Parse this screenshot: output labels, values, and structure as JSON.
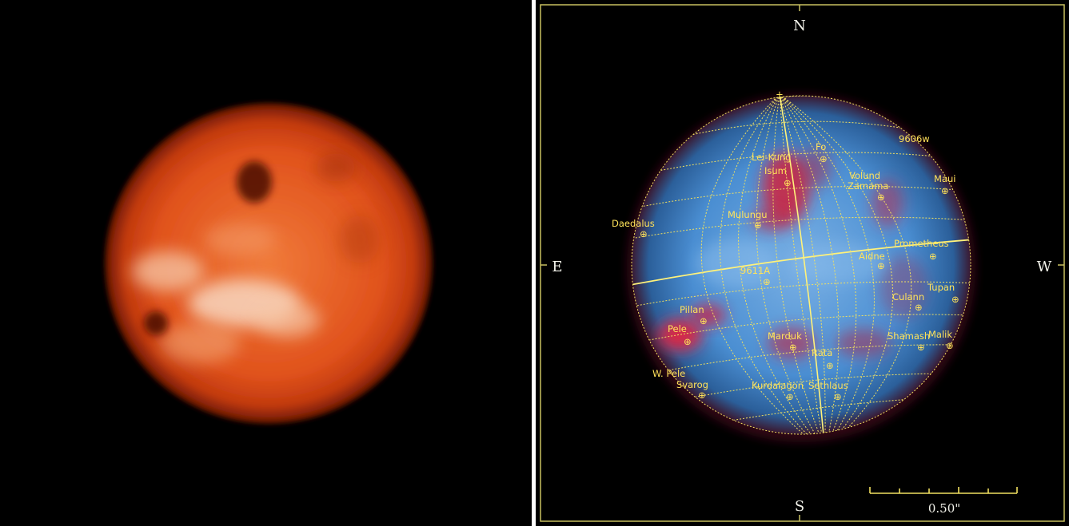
{
  "left_image": {
    "description_icon": "io-false-color-disk-image"
  },
  "right_image": {
    "compass": {
      "north": "N",
      "south": "S",
      "east": "E",
      "west": "W"
    },
    "scale_bar_label": "0.50\"",
    "features": [
      {
        "id": "fo",
        "label": "Fo"
      },
      {
        "id": "9606w",
        "label": "9606w"
      },
      {
        "id": "lei-kung",
        "label": "Lei-Kung"
      },
      {
        "id": "isum",
        "label": "Isum"
      },
      {
        "id": "volund",
        "label": "Volund"
      },
      {
        "id": "zamama",
        "label": "Zamama"
      },
      {
        "id": "maui",
        "label": "Maui"
      },
      {
        "id": "daedalus",
        "label": "Daedalus"
      },
      {
        "id": "mulungu",
        "label": "Mulungu"
      },
      {
        "id": "prometheus",
        "label": "Prometheus"
      },
      {
        "id": "aidne",
        "label": "Aidne"
      },
      {
        "id": "9611a",
        "label": "9611A"
      },
      {
        "id": "tupan",
        "label": "Tupan"
      },
      {
        "id": "culann",
        "label": "Culann"
      },
      {
        "id": "pillan",
        "label": "Pillan"
      },
      {
        "id": "pele",
        "label": "Pele"
      },
      {
        "id": "marduk",
        "label": "Marduk"
      },
      {
        "id": "shamash",
        "label": "Shamash"
      },
      {
        "id": "malik",
        "label": "Malik"
      },
      {
        "id": "rata",
        "label": "Rata"
      },
      {
        "id": "w-pele",
        "label": "W. Pele"
      },
      {
        "id": "svarog",
        "label": "Svarog"
      },
      {
        "id": "kurdalagon",
        "label": "Kurdalagon"
      },
      {
        "id": "sethlaus",
        "label": "Sethlaus"
      }
    ]
  }
}
